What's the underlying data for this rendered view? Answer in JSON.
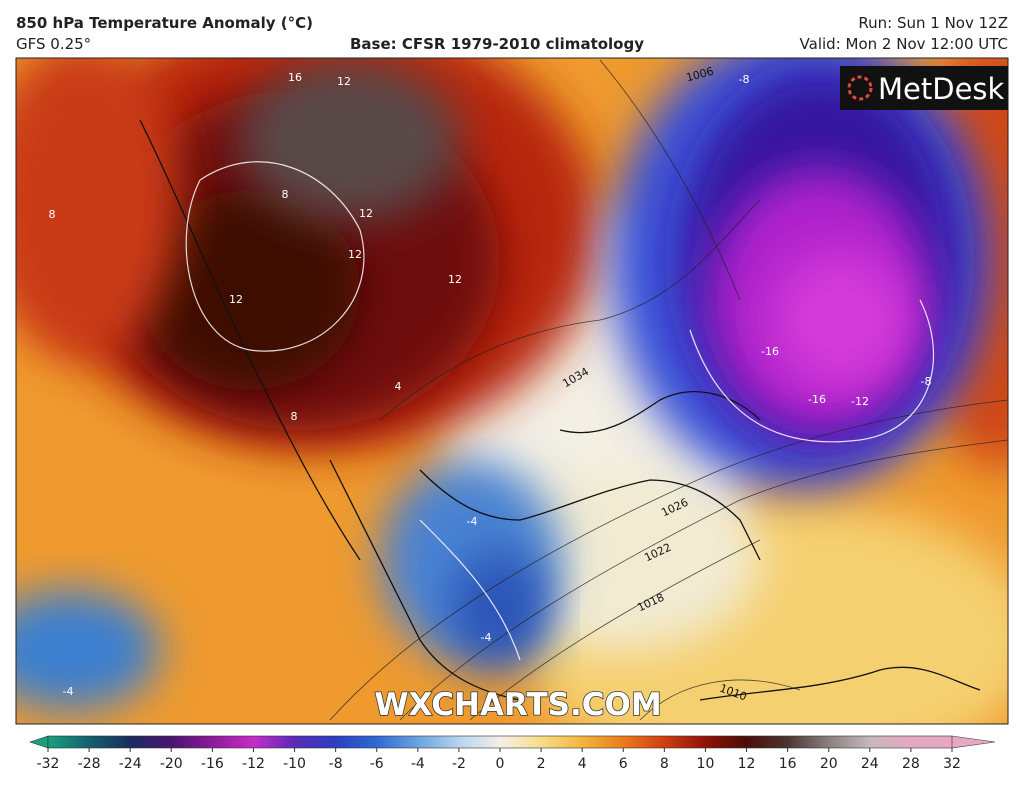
{
  "header": {
    "title": "850 hPa Temperature Anomaly (°C)",
    "model": "GFS 0.25°",
    "base": "Base: CFSR 1979-2010 climatology",
    "run": "Run: Sun 1 Nov 12Z",
    "valid": "Valid: Mon 2 Nov 12:00 UTC"
  },
  "logo": "MetDesk",
  "watermark": "WXCHARTS.COM",
  "map": {
    "labels": [
      "16",
      "12",
      "8",
      "12",
      "12",
      "8",
      "12",
      "12",
      "8",
      "4",
      "1034",
      "1026",
      "1022",
      "1018",
      "1010",
      "1006",
      "-8",
      "-16",
      "-16",
      "-12",
      "-8",
      "-4",
      "-4",
      "-4"
    ]
  },
  "colorbar": {
    "ticks": [
      -32,
      -28,
      -24,
      -20,
      -16,
      -12,
      -10,
      -8,
      -6,
      -4,
      -2,
      0,
      2,
      4,
      6,
      8,
      10,
      12,
      16,
      20,
      24,
      28,
      32
    ],
    "colors": [
      "#1a9e80",
      "#14606e",
      "#1b2a5e",
      "#4a1470",
      "#8e1a9a",
      "#c42cc8",
      "#5a2ab8",
      "#2a3fc0",
      "#2f6ad0",
      "#6aa4e0",
      "#b8d4ef",
      "#f4f0e6",
      "#f7dc8a",
      "#f5b53a",
      "#ec7a1e",
      "#cf3d12",
      "#8e1208",
      "#4a0d08",
      "#4d3433",
      "#8a8080",
      "#c8b8bb",
      "#e7a8c2"
    ]
  }
}
